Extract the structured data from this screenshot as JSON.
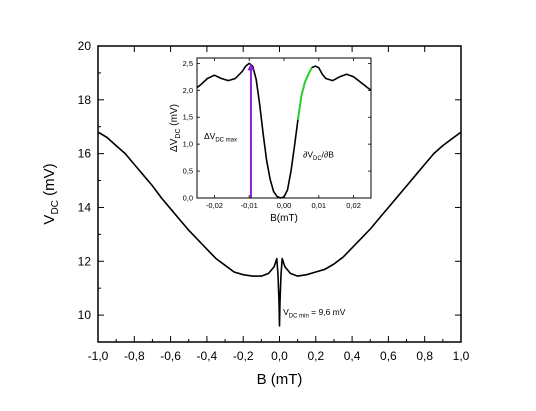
{
  "chart_data": [
    {
      "type": "line",
      "xlabel": "B (mT)",
      "ylabel": {
        "main": "V",
        "sub": "DC",
        "rest": " (mV)"
      },
      "xlim": [
        -1.0,
        1.0
      ],
      "ylim": [
        9.0,
        20.0
      ],
      "x_ticks": [
        -1.0,
        -0.8,
        -0.6,
        -0.4,
        -0.2,
        0.0,
        0.2,
        0.4,
        0.6,
        0.8,
        1.0
      ],
      "x_tick_labels": [
        "-1,0",
        "-0,8",
        "-0,6",
        "-0,4",
        "-0,2",
        "0,0",
        "0,2",
        "0,4",
        "0,6",
        "0,8",
        "1,0"
      ],
      "y_ticks": [
        10,
        12,
        14,
        16,
        18,
        20
      ],
      "y_tick_labels": [
        "10",
        "12",
        "14",
        "16",
        "18",
        "20"
      ],
      "grid": false,
      "series": [
        {
          "x": [
            -1.0,
            -0.95,
            -0.9,
            -0.85,
            -0.8,
            -0.75,
            -0.7,
            -0.65,
            -0.6,
            -0.55,
            -0.5,
            -0.45,
            -0.4,
            -0.35,
            -0.3,
            -0.25,
            -0.2,
            -0.15,
            -0.1,
            -0.06,
            -0.03,
            -0.015,
            -0.008,
            -0.003,
            0.0,
            0.003,
            0.008,
            0.015,
            0.03,
            0.06,
            0.1,
            0.15,
            0.2,
            0.25,
            0.3,
            0.35,
            0.4,
            0.45,
            0.5,
            0.55,
            0.6,
            0.65,
            0.7,
            0.75,
            0.8,
            0.85,
            0.9,
            0.95,
            1.0
          ],
          "y": [
            16.8,
            16.6,
            16.3,
            16.0,
            15.6,
            15.2,
            14.8,
            14.35,
            13.95,
            13.55,
            13.15,
            12.8,
            12.45,
            12.1,
            11.85,
            11.6,
            11.5,
            11.45,
            11.45,
            11.55,
            11.8,
            12.1,
            11.5,
            10.5,
            9.6,
            10.5,
            11.5,
            12.1,
            11.8,
            11.55,
            11.45,
            11.5,
            11.6,
            11.7,
            11.9,
            12.15,
            12.5,
            12.85,
            13.2,
            13.6,
            14.0,
            14.4,
            14.8,
            15.2,
            15.6,
            16.0,
            16.3,
            16.55,
            16.8
          ]
        }
      ],
      "annotations": [
        {
          "main": "V",
          "sub": "DC min",
          "rest": " = 9,6 mV",
          "x": 0.02,
          "y": 10.0
        }
      ]
    },
    {
      "type": "line",
      "xlabel": "B(mT)",
      "ylabel": {
        "main": "ΔV",
        "sub": "DC",
        "rest": " (mV)"
      },
      "xlim": [
        -0.025,
        0.025
      ],
      "ylim": [
        0.0,
        2.6
      ],
      "x_ticks": [
        -0.02,
        -0.01,
        0.0,
        0.01,
        0.02
      ],
      "x_tick_labels": [
        "-0,02",
        "-0,01",
        "0,00",
        "0,01",
        "0,02"
      ],
      "y_ticks": [
        0.0,
        0.5,
        1.0,
        1.5,
        2.0,
        2.5
      ],
      "y_tick_labels": [
        "0,0",
        "0,5",
        "1,0",
        "1,5",
        "2,0",
        "2,5"
      ],
      "grid": false,
      "series": [
        {
          "x": [
            -0.025,
            -0.024,
            -0.022,
            -0.02,
            -0.018,
            -0.016,
            -0.014,
            -0.012,
            -0.011,
            -0.01,
            -0.009,
            -0.008,
            -0.007,
            -0.006,
            -0.005,
            -0.004,
            -0.003,
            -0.002,
            -0.001,
            0.0,
            0.001,
            0.002,
            0.003,
            0.004,
            0.005,
            0.006,
            0.007,
            0.008,
            0.009,
            0.01,
            0.011,
            0.012,
            0.014,
            0.016,
            0.018,
            0.02,
            0.022,
            0.024,
            0.025
          ],
          "y": [
            2.05,
            2.1,
            2.22,
            2.28,
            2.22,
            2.18,
            2.22,
            2.35,
            2.45,
            2.5,
            2.45,
            2.2,
            1.75,
            1.2,
            0.7,
            0.35,
            0.12,
            0.03,
            0.0,
            0.02,
            0.15,
            0.5,
            0.95,
            1.45,
            1.9,
            2.15,
            2.3,
            2.42,
            2.45,
            2.42,
            2.3,
            2.22,
            2.18,
            2.25,
            2.3,
            2.25,
            2.15,
            2.05,
            2.0
          ]
        }
      ],
      "highlight": {
        "color": "#2ed12e",
        "x_from": 0.004,
        "x_to": 0.0085
      },
      "arrow": {
        "color": "#8b22d8",
        "x": -0.0095,
        "y_from": 0.0,
        "y_to": 2.5
      },
      "annotations": [
        {
          "main": "ΔV",
          "sub": "DC max",
          "rest": "",
          "x": -0.023,
          "y": 1.1
        },
        {
          "main": "∂V",
          "sub": "DC",
          "rest": "/∂B",
          "x": 0.0055,
          "y": 0.75
        }
      ]
    }
  ]
}
